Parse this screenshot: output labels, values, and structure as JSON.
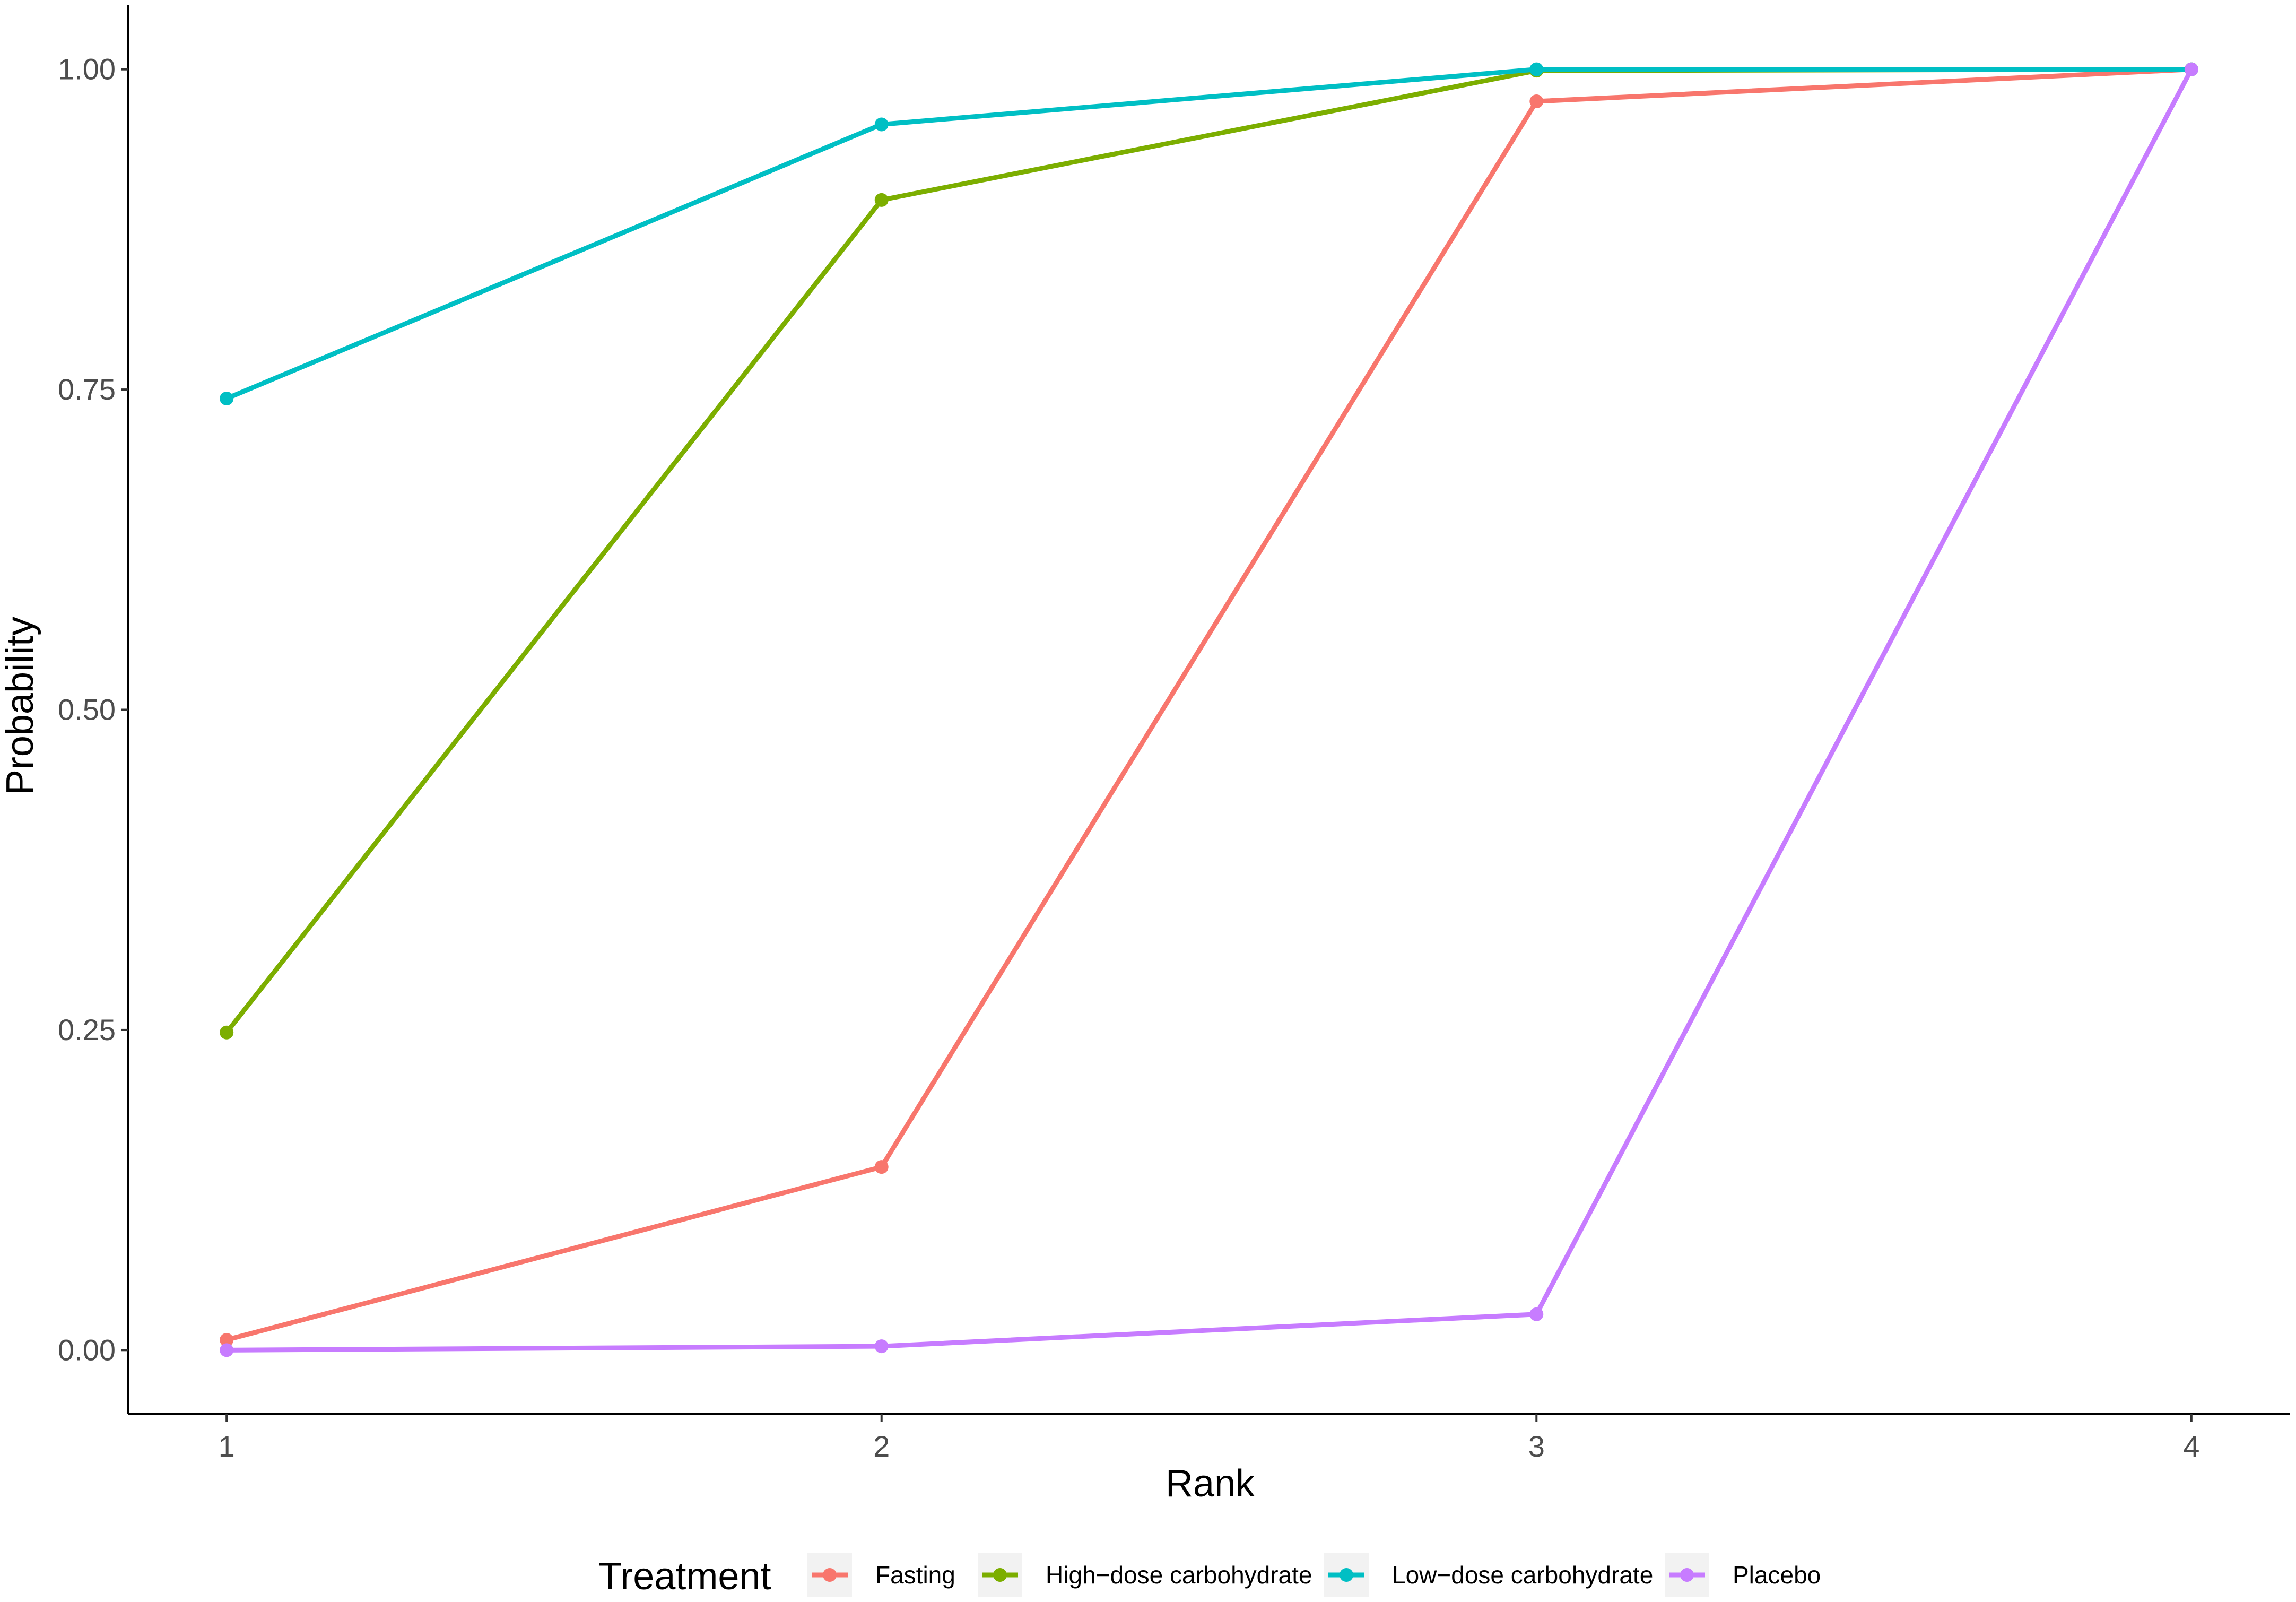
{
  "chart_data": {
    "type": "line",
    "title": "",
    "xlabel": "Rank",
    "ylabel": "Probability",
    "x": [
      1,
      2,
      3,
      4
    ],
    "xlim": [
      0.85,
      4.15
    ],
    "ylim": [
      -0.05,
      1.05
    ],
    "x_ticks": [
      "1",
      "2",
      "3",
      "4"
    ],
    "y_ticks": [
      0.0,
      0.25,
      0.5,
      0.75,
      1.0
    ],
    "y_tick_labels": [
      "0.00",
      "0.25",
      "0.50",
      "0.75",
      "1.00"
    ],
    "grid": false,
    "legend": {
      "title": "Treatment",
      "position": "bottom"
    },
    "series": [
      {
        "name": "Fasting",
        "color": "#F8766D",
        "values": [
          0.008,
          0.143,
          0.975,
          1.0
        ]
      },
      {
        "name": "High−dose carbohydrate",
        "color": "#7CAE00",
        "values": [
          0.248,
          0.898,
          0.999,
          1.0
        ]
      },
      {
        "name": "Low−dose carbohydrate",
        "color": "#00BFC4",
        "values": [
          0.743,
          0.957,
          1.0,
          1.0
        ]
      },
      {
        "name": "Placebo",
        "color": "#C77CFF",
        "values": [
          0.0,
          0.003,
          0.028,
          1.0
        ]
      }
    ]
  }
}
